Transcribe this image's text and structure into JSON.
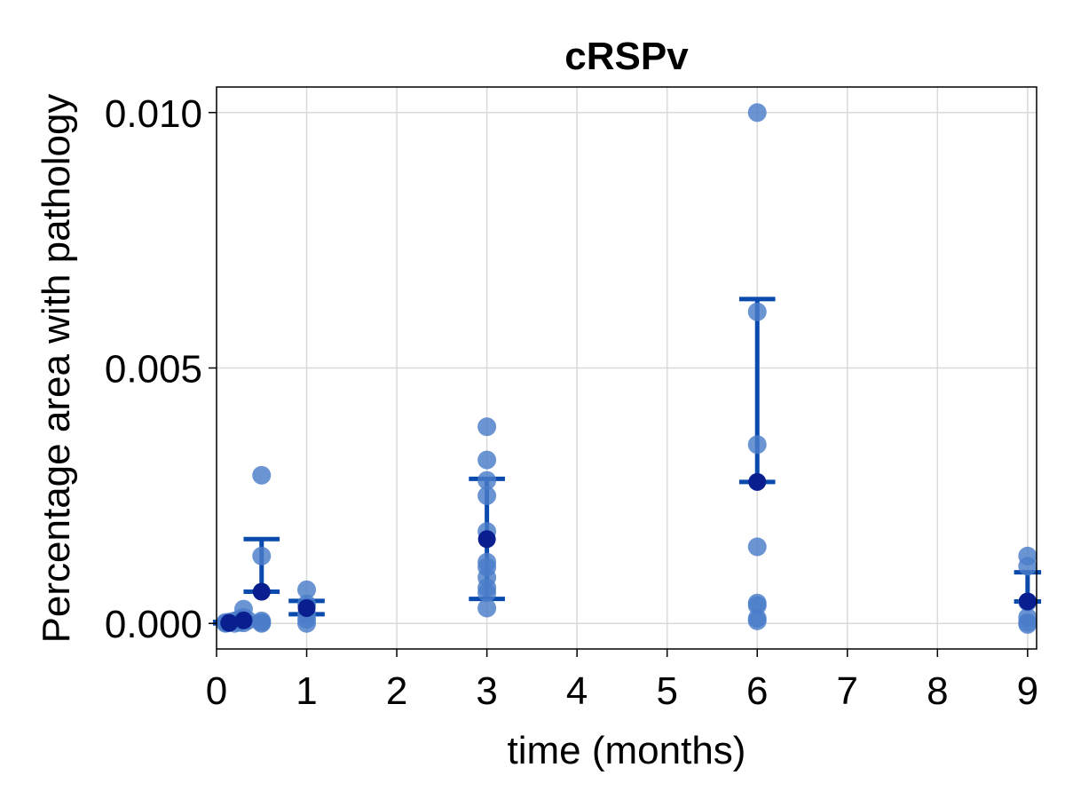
{
  "chart_data": {
    "type": "scatter",
    "title": "cRSPv",
    "xlabel": "time (months)",
    "ylabel": "Percentage area with pathology",
    "xlim": [
      0,
      9.1
    ],
    "ylim": [
      -0.0005,
      0.0105
    ],
    "x_ticks": [
      {
        "value": 0,
        "label": "0"
      },
      {
        "value": 1,
        "label": "1"
      },
      {
        "value": 2,
        "label": "2"
      },
      {
        "value": 3,
        "label": "3"
      },
      {
        "value": 4,
        "label": "4"
      },
      {
        "value": 5,
        "label": "5"
      },
      {
        "value": 6,
        "label": "6"
      },
      {
        "value": 7,
        "label": "7"
      },
      {
        "value": 8,
        "label": "8"
      },
      {
        "value": 9,
        "label": "9"
      }
    ],
    "y_ticks": [
      {
        "value": 0.0,
        "label": "0.000"
      },
      {
        "value": 0.005,
        "label": "0.005"
      },
      {
        "value": 0.01,
        "label": "0.010"
      }
    ],
    "grid": true,
    "colors": {
      "points": "#4a7cc9",
      "mean_point": "#0a1f8f",
      "error_bar": "#0a4aad"
    },
    "points": [
      {
        "x": 0.1,
        "y": 0.0
      },
      {
        "x": 0.1,
        "y": 2e-05
      },
      {
        "x": 0.12,
        "y": 1e-05
      },
      {
        "x": 0.15,
        "y": 3e-05
      },
      {
        "x": 0.2,
        "y": 5e-05
      },
      {
        "x": 0.2,
        "y": 0.0
      },
      {
        "x": 0.25,
        "y": 8e-05
      },
      {
        "x": 0.25,
        "y": 2e-05
      },
      {
        "x": 0.3,
        "y": 0.00028
      },
      {
        "x": 0.3,
        "y": 0.00012
      },
      {
        "x": 0.3,
        "y": 1e-05
      },
      {
        "x": 0.35,
        "y": 6e-05
      },
      {
        "x": 0.5,
        "y": 0.0029
      },
      {
        "x": 0.5,
        "y": 0.00132
      },
      {
        "x": 0.5,
        "y": 5e-05
      },
      {
        "x": 0.5,
        "y": 0.0
      },
      {
        "x": 0.5,
        "y": 2e-05
      },
      {
        "x": 1,
        "y": 0.00066
      },
      {
        "x": 1,
        "y": 0.00038
      },
      {
        "x": 1,
        "y": 0.00018
      },
      {
        "x": 1,
        "y": 8e-05
      },
      {
        "x": 1,
        "y": 0.0
      },
      {
        "x": 3,
        "y": 0.00385
      },
      {
        "x": 3,
        "y": 0.0032
      },
      {
        "x": 3,
        "y": 0.0028
      },
      {
        "x": 3,
        "y": 0.0025
      },
      {
        "x": 3,
        "y": 0.0018
      },
      {
        "x": 3,
        "y": 0.0012
      },
      {
        "x": 3,
        "y": 0.0011
      },
      {
        "x": 3,
        "y": 0.0009
      },
      {
        "x": 3,
        "y": 0.0007
      },
      {
        "x": 3,
        "y": 0.0006
      },
      {
        "x": 3,
        "y": 0.0003
      },
      {
        "x": 6,
        "y": 0.01
      },
      {
        "x": 6,
        "y": 0.0061
      },
      {
        "x": 6,
        "y": 0.0035
      },
      {
        "x": 6,
        "y": 0.0015
      },
      {
        "x": 6,
        "y": 0.0004
      },
      {
        "x": 6,
        "y": 0.00035
      },
      {
        "x": 6,
        "y": 0.0001
      },
      {
        "x": 6,
        "y": 5e-05
      },
      {
        "x": 9,
        "y": 0.00132
      },
      {
        "x": 9,
        "y": 0.00112
      },
      {
        "x": 9,
        "y": 0.00042
      },
      {
        "x": 9,
        "y": 0.00012
      },
      {
        "x": 9,
        "y": 2e-05
      },
      {
        "x": 9,
        "y": -2e-05
      }
    ],
    "summary": [
      {
        "x": 0.14,
        "mean": 1e-05,
        "low": 0.0,
        "high": 3e-05,
        "cap_half_width": 0.18
      },
      {
        "x": 0.3,
        "mean": 6e-05,
        "low": 4e-05,
        "high": 0.0001,
        "cap_half_width": 0.18
      },
      {
        "x": 0.5,
        "mean": 0.00062,
        "low": 0.00062,
        "high": 0.00165,
        "cap_half_width": 0.2
      },
      {
        "x": 1,
        "mean": 0.0003,
        "low": 0.00018,
        "high": 0.00044,
        "cap_half_width": 0.2
      },
      {
        "x": 3,
        "mean": 0.00165,
        "low": 0.00048,
        "high": 0.00283,
        "cap_half_width": 0.2
      },
      {
        "x": 6,
        "mean": 0.00277,
        "low": 0.00277,
        "high": 0.00635,
        "cap_half_width": 0.2
      },
      {
        "x": 9,
        "mean": 0.00043,
        "low": 0.00043,
        "high": 0.001,
        "cap_half_width": 0.15
      }
    ]
  }
}
